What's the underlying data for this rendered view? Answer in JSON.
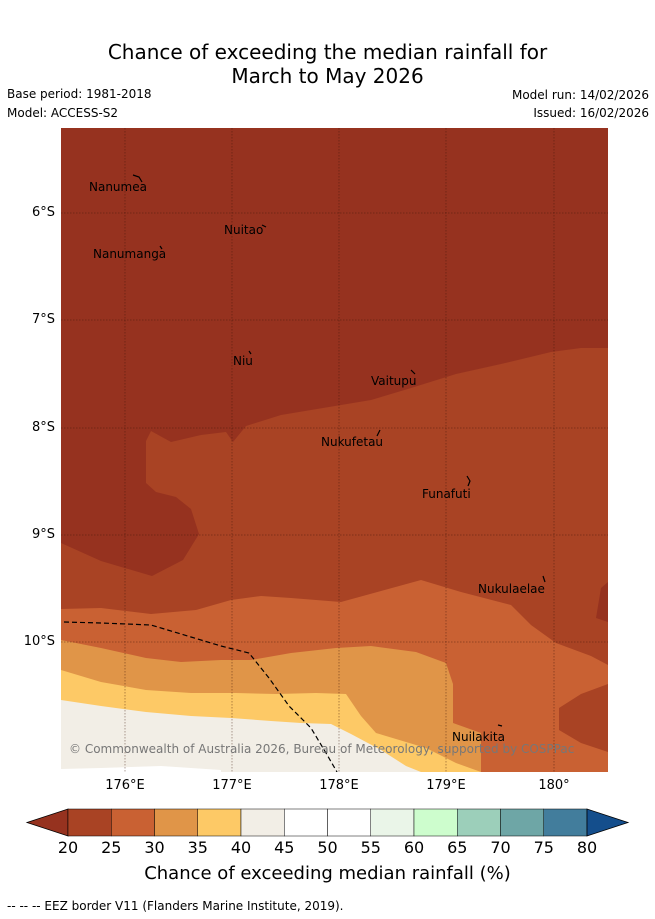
{
  "title": {
    "line1": "Chance of exceeding the median rainfall for",
    "line2": "March to May 2026"
  },
  "meta": {
    "base_period": "Base period: 1981-2018",
    "model": "Model: ACCESS-S2",
    "model_run": "Model run: 14/02/2026",
    "issued": "Issued: 16/02/2026"
  },
  "map": {
    "latitude_labels": [
      "6°S",
      "7°S",
      "8°S",
      "9°S",
      "10°S"
    ],
    "longitude_labels": [
      "176°E",
      "177°E",
      "178°E",
      "179°E",
      "180°"
    ],
    "places": [
      "Nanumea",
      "Nuitao",
      "Nanumanga",
      "Niu",
      "Vaitupu",
      "Nukufetau",
      "Funafuti",
      "Nukulaelae",
      "Nuilakita"
    ],
    "copyright": "© Commonwealth of Australia 2026, Bureau of Meteorology, supported by COSPPac"
  },
  "colorbar": {
    "ticks": [
      "20",
      "25",
      "30",
      "35",
      "40",
      "45",
      "50",
      "55",
      "60",
      "65",
      "70",
      "75",
      "80"
    ],
    "title": "Chance of exceeding median rainfall (%)",
    "colors": [
      "#a94324",
      "#c96133",
      "#e09548",
      "#fdc966",
      "#f2eee6",
      "#ffffff",
      "#ffffff",
      "#eaf5e8",
      "#cdfdcd",
      "#9ccfba",
      "#6ea6a6",
      "#427d9c"
    ],
    "low_color": "#96321f",
    "high_color": "#144e8c"
  },
  "footnote": "-- -- -- EEZ border V11 (Flanders Marine Institute, 2019)."
}
